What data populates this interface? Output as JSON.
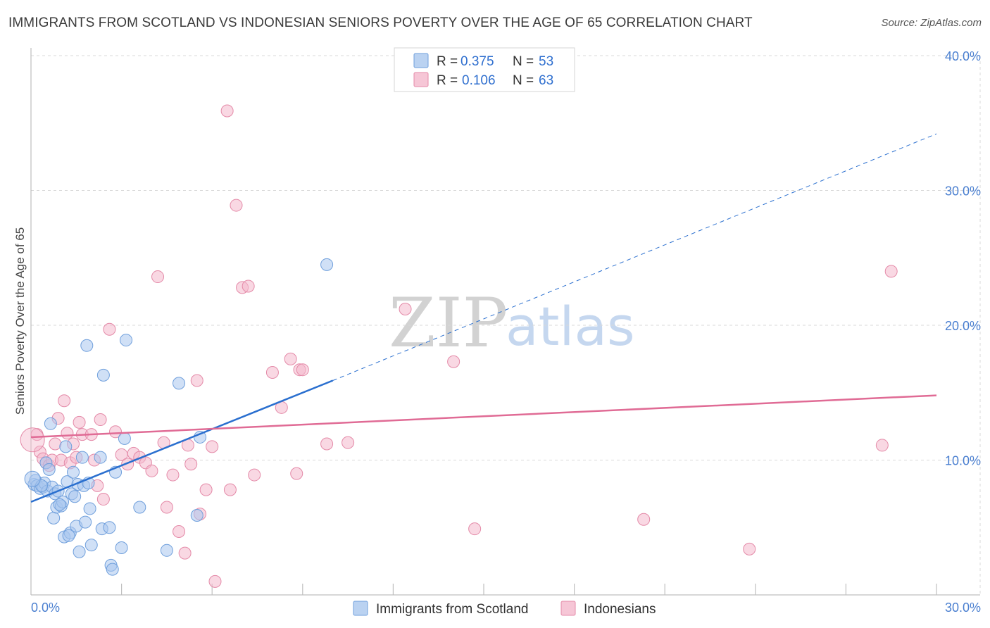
{
  "header": {
    "title": "IMMIGRANTS FROM SCOTLAND VS INDONESIAN SENIORS POVERTY OVER THE AGE OF 65 CORRELATION CHART",
    "source": "Source: ZipAtlas.com"
  },
  "watermark": {
    "zip": "ZIP",
    "atlas": "atlas"
  },
  "colors": {
    "blue_fill": "#a9c7ee",
    "blue_stroke": "#6f9fdc",
    "blue_line": "#2a6fcf",
    "pink_fill": "#f4b8cc",
    "pink_stroke": "#e48aa8",
    "pink_line": "#e06b95",
    "grid": "#d8d8d8",
    "tick_text": "#4a7fd0"
  },
  "chart_data": {
    "type": "scatter",
    "title": "IMMIGRANTS FROM SCOTLAND VS INDONESIAN SENIORS POVERTY OVER THE AGE OF 65 CORRELATION CHART",
    "xlabel": "",
    "ylabel": "Seniors Poverty Over the Age of 65",
    "xlim": [
      0,
      30
    ],
    "ylim": [
      0,
      40
    ],
    "x_ticks": [
      0,
      30
    ],
    "x_tick_labels": [
      "0.0%",
      "30.0%"
    ],
    "y_ticks": [
      10,
      20,
      30,
      40
    ],
    "y_tick_labels": [
      "10.0%",
      "20.0%",
      "30.0%",
      "40.0%"
    ],
    "legend": [
      {
        "name": "Immigrants from Scotland",
        "r_label": "R = ",
        "r_value": "0.375",
        "n_label": "N = ",
        "n_value": "53"
      },
      {
        "name": "Indonesians",
        "r_label": "R = ",
        "r_value": "0.106",
        "n_label": "N = ",
        "n_value": "63"
      }
    ],
    "series": [
      {
        "name": "Immigrants from Scotland",
        "trend": {
          "x0": 0,
          "y0": 6.9,
          "x1": 10,
          "y1": 15.9,
          "dash_x1": 30,
          "dash_y1": 34.2
        },
        "points": [
          [
            0.1,
            8.2
          ],
          [
            0.15,
            8.5
          ],
          [
            0.2,
            8.1
          ],
          [
            0.3,
            7.9
          ],
          [
            0.4,
            8.0
          ],
          [
            0.45,
            8.3
          ],
          [
            0.5,
            9.8
          ],
          [
            0.55,
            7.7
          ],
          [
            0.6,
            9.3
          ],
          [
            0.65,
            12.7
          ],
          [
            0.7,
            8.0
          ],
          [
            0.75,
            5.7
          ],
          [
            0.8,
            7.5
          ],
          [
            0.85,
            6.5
          ],
          [
            0.9,
            7.7
          ],
          [
            1.0,
            6.6
          ],
          [
            1.05,
            6.9
          ],
          [
            1.1,
            4.3
          ],
          [
            1.15,
            11.0
          ],
          [
            1.2,
            8.4
          ],
          [
            1.3,
            4.6
          ],
          [
            1.35,
            7.5
          ],
          [
            1.4,
            9.1
          ],
          [
            1.5,
            5.1
          ],
          [
            1.55,
            8.2
          ],
          [
            1.6,
            3.2
          ],
          [
            1.7,
            10.2
          ],
          [
            1.75,
            8.1
          ],
          [
            1.8,
            5.4
          ],
          [
            1.85,
            18.5
          ],
          [
            1.9,
            8.3
          ],
          [
            1.95,
            6.4
          ],
          [
            2.0,
            3.7
          ],
          [
            2.3,
            10.2
          ],
          [
            2.35,
            4.9
          ],
          [
            2.4,
            16.3
          ],
          [
            2.6,
            5.0
          ],
          [
            2.65,
            2.2
          ],
          [
            2.7,
            1.9
          ],
          [
            2.8,
            9.1
          ],
          [
            3.0,
            3.5
          ],
          [
            3.1,
            11.6
          ],
          [
            3.15,
            18.9
          ],
          [
            3.6,
            6.5
          ],
          [
            4.5,
            3.3
          ],
          [
            4.9,
            15.7
          ],
          [
            5.5,
            5.9
          ],
          [
            5.6,
            11.7
          ],
          [
            9.8,
            24.5
          ],
          [
            1.25,
            4.4
          ],
          [
            0.95,
            6.7
          ],
          [
            1.45,
            7.3
          ],
          [
            0.35,
            8.1
          ]
        ]
      },
      {
        "name": "Indonesians",
        "trend": {
          "x0": 0,
          "y0": 11.7,
          "x1": 30,
          "y1": 14.8
        },
        "points": [
          [
            0.2,
            11.9
          ],
          [
            0.3,
            10.6
          ],
          [
            0.4,
            10.1
          ],
          [
            0.5,
            9.8
          ],
          [
            0.6,
            9.6
          ],
          [
            0.7,
            10.0
          ],
          [
            0.8,
            11.2
          ],
          [
            0.9,
            13.1
          ],
          [
            1.0,
            10.0
          ],
          [
            1.1,
            14.4
          ],
          [
            1.2,
            12.0
          ],
          [
            1.3,
            9.8
          ],
          [
            1.4,
            11.2
          ],
          [
            1.5,
            10.2
          ],
          [
            1.6,
            12.8
          ],
          [
            1.7,
            11.9
          ],
          [
            2.0,
            11.9
          ],
          [
            2.1,
            10.0
          ],
          [
            2.2,
            8.1
          ],
          [
            2.3,
            13.0
          ],
          [
            2.4,
            7.1
          ],
          [
            2.6,
            19.7
          ],
          [
            2.8,
            12.1
          ],
          [
            3.0,
            10.4
          ],
          [
            3.2,
            9.7
          ],
          [
            3.4,
            10.5
          ],
          [
            3.6,
            10.2
          ],
          [
            3.8,
            9.8
          ],
          [
            4.0,
            9.2
          ],
          [
            4.2,
            23.6
          ],
          [
            4.4,
            11.3
          ],
          [
            4.5,
            6.5
          ],
          [
            4.7,
            8.9
          ],
          [
            4.9,
            4.7
          ],
          [
            5.1,
            3.1
          ],
          [
            5.2,
            11.1
          ],
          [
            5.3,
            9.7
          ],
          [
            5.5,
            15.9
          ],
          [
            5.6,
            6.0
          ],
          [
            5.8,
            7.8
          ],
          [
            6.0,
            11.0
          ],
          [
            6.1,
            1.0
          ],
          [
            6.5,
            35.9
          ],
          [
            6.6,
            7.8
          ],
          [
            6.8,
            28.9
          ],
          [
            7.0,
            22.8
          ],
          [
            7.2,
            22.9
          ],
          [
            7.4,
            8.9
          ],
          [
            8.0,
            16.5
          ],
          [
            8.3,
            13.9
          ],
          [
            8.6,
            17.5
          ],
          [
            8.8,
            9.0
          ],
          [
            8.9,
            16.7
          ],
          [
            9.0,
            16.7
          ],
          [
            9.8,
            11.2
          ],
          [
            10.5,
            11.3
          ],
          [
            12.4,
            21.2
          ],
          [
            14.0,
            17.3
          ],
          [
            14.7,
            4.9
          ],
          [
            20.3,
            5.6
          ],
          [
            23.8,
            3.4
          ],
          [
            28.2,
            11.1
          ],
          [
            28.5,
            24.0
          ]
        ]
      }
    ]
  }
}
